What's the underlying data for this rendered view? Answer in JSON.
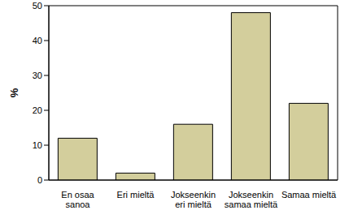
{
  "chart_data": {
    "type": "bar",
    "y_label": "%",
    "categories": [
      "En osaa sanoa",
      "Eri mieltä",
      "Jokseenkin eri mieltä",
      "Jokseenkin samaa mieltä",
      "Samaa mieltä"
    ],
    "values": [
      12,
      2,
      16,
      48,
      22
    ],
    "color": "#d3ce9c",
    "ylim": [
      0,
      50
    ],
    "yticks": [
      0,
      10,
      20,
      30,
      40,
      50
    ],
    "grid": false
  }
}
